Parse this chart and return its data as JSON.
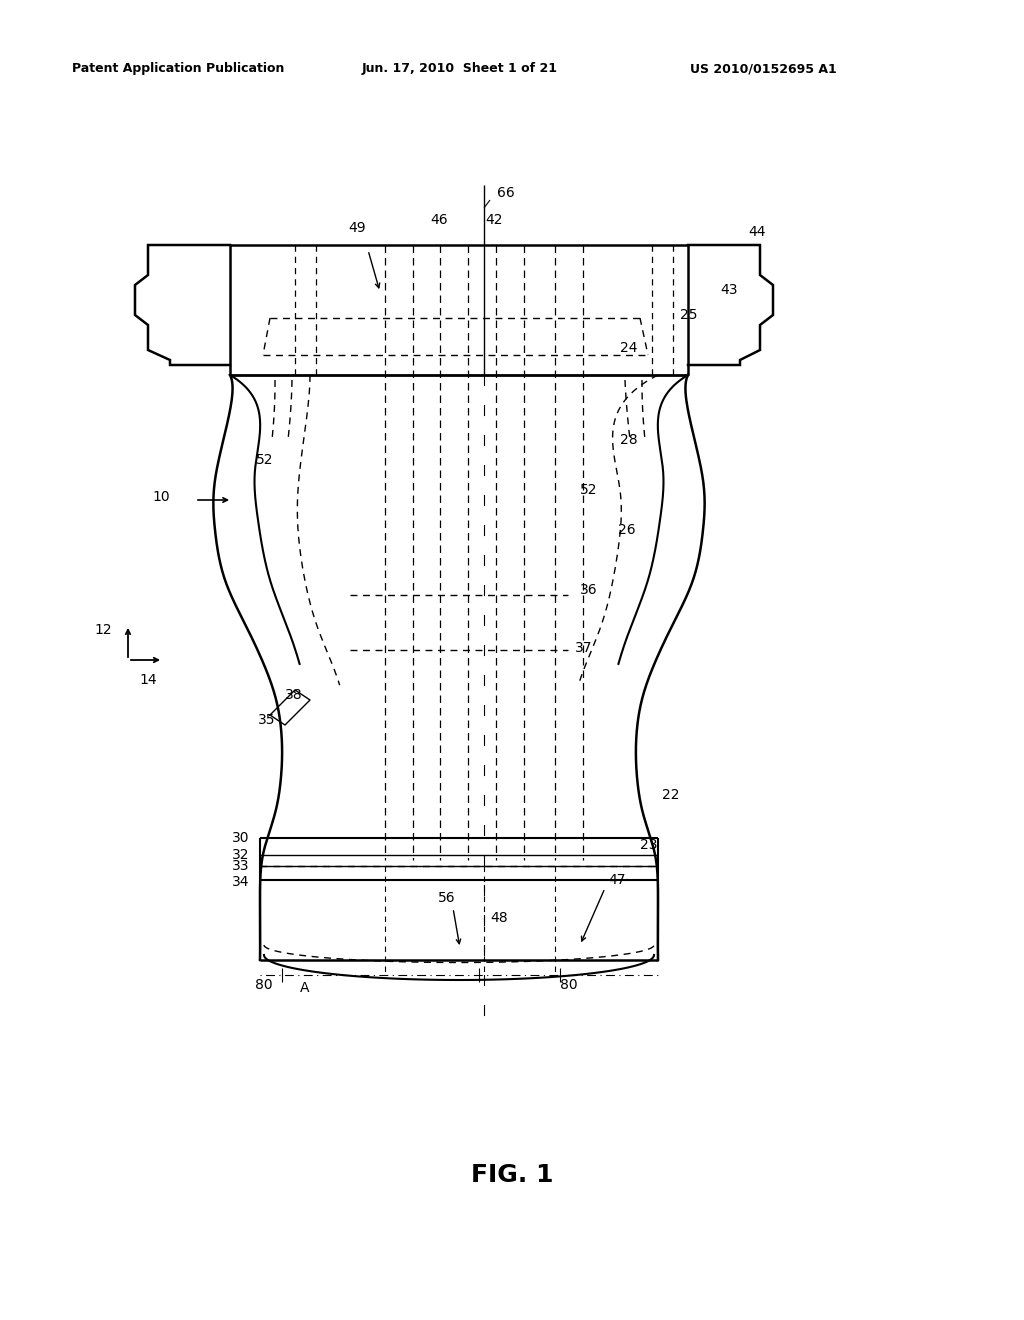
{
  "header_left": "Patent Application Publication",
  "header_mid": "Jun. 17, 2010  Sheet 1 of 21",
  "header_right": "US 2010/0152695 A1",
  "fig_label": "FIG. 1",
  "bg_color": "#ffffff"
}
